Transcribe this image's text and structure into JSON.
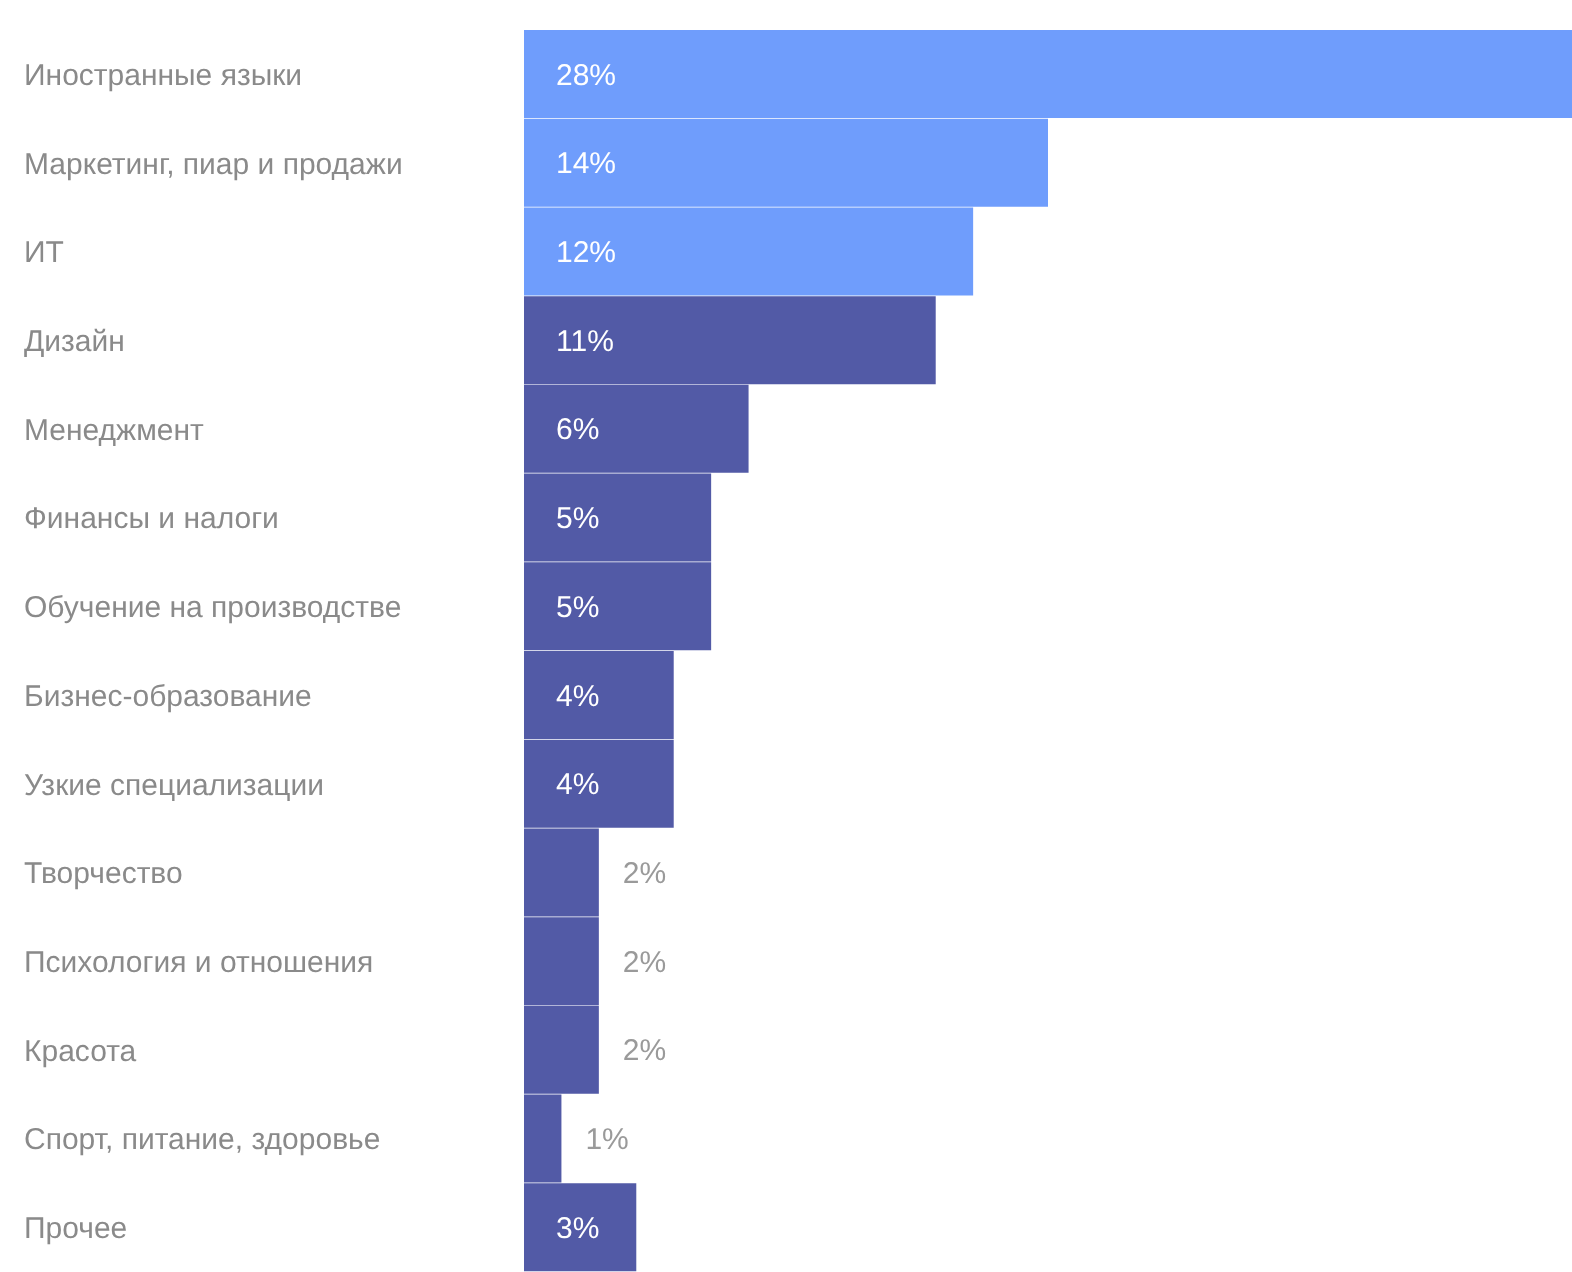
{
  "chart_data": {
    "type": "bar",
    "orientation": "horizontal",
    "categories": [
      "Иностранные языки",
      "Маркетинг, пиар и продажи",
      "ИТ",
      "Дизайн",
      "Менеджмент",
      "Финансы и налоги",
      "Обучение на производстве",
      "Бизнес-образование",
      "Узкие специализации",
      "Творчество",
      "Психология и отношения",
      "Красота",
      "Спорт, питание, здоровье",
      "Прочее"
    ],
    "values": [
      28,
      14,
      12,
      11,
      6,
      5,
      5,
      4,
      4,
      2,
      2,
      2,
      1,
      3
    ],
    "value_labels": [
      "28%",
      "14%",
      "12%",
      "11%",
      "6%",
      "5%",
      "5%",
      "4%",
      "4%",
      "2%",
      "2%",
      "2%",
      "1%",
      "3%"
    ],
    "colors": [
      "#6f9dfc",
      "#6f9dfc",
      "#6f9dfc",
      "#525aa6",
      "#525aa6",
      "#525aa6",
      "#525aa6",
      "#525aa6",
      "#525aa6",
      "#525aa6",
      "#525aa6",
      "#525aa6",
      "#525aa6",
      "#525aa6"
    ]
  }
}
